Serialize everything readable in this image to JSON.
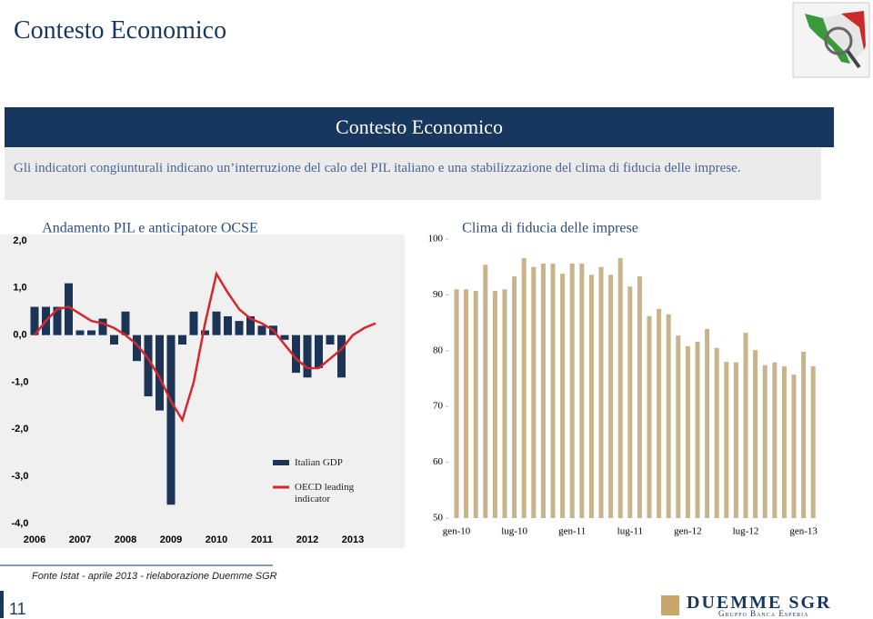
{
  "header": {
    "title": "Contesto Economico"
  },
  "banner": {
    "title": "Contesto Economico",
    "text": "Gli indicatori congiunturali indicano un’interruzione del calo del PIL italiano e una stabilizzazione del clima di fiducia delle imprese."
  },
  "chart_data": [
    {
      "type": "bar",
      "title": "Andamento PIL e anticipatore OCSE",
      "categories": [
        "2006",
        null,
        null,
        null,
        "2007",
        null,
        null,
        null,
        "2008",
        null,
        null,
        null,
        "2009",
        null,
        null,
        null,
        "2010",
        null,
        null,
        null,
        "2011",
        null,
        null,
        null,
        "2012",
        null,
        null,
        null,
        "2013",
        null,
        null
      ],
      "series": [
        {
          "name": "Italian GDP",
          "color": "#1c3557",
          "values": [
            0.6,
            0.6,
            0.6,
            1.1,
            0.1,
            0.1,
            0.35,
            -0.2,
            0.5,
            -0.55,
            -1.3,
            -1.6,
            -3.6,
            -0.2,
            0.5,
            0.1,
            0.5,
            0.4,
            0.3,
            0.4,
            0.2,
            0.2,
            -0.1,
            -0.8,
            -0.9,
            -0.7,
            -0.2,
            -0.9,
            null,
            null,
            null
          ]
        },
        {
          "name": "OECD leading indicator",
          "color": "#d7262c",
          "type": "line",
          "values": [
            0.0,
            0.3,
            0.55,
            0.6,
            0.45,
            0.3,
            0.25,
            0.15,
            0.0,
            -0.2,
            -0.5,
            -0.9,
            -1.4,
            -1.8,
            -1.0,
            0.25,
            1.3,
            0.9,
            0.55,
            0.35,
            0.25,
            0.1,
            -0.2,
            -0.5,
            -0.7,
            -0.7,
            -0.5,
            -0.3,
            0.0,
            0.15,
            0.25
          ]
        }
      ],
      "ylim": [
        -4,
        2
      ],
      "yticks": [
        {
          "value": 2,
          "label": "2,0"
        },
        {
          "value": 1,
          "label": "1,0"
        },
        {
          "value": 0,
          "label": "0,0"
        },
        {
          "value": -1,
          "label": "-1,0"
        },
        {
          "value": -2,
          "label": "-2,0"
        },
        {
          "value": -3,
          "label": "-3,0"
        },
        {
          "value": -4,
          "label": "-4,0"
        }
      ]
    },
    {
      "type": "bar",
      "title": "Clima di fiducia delle imprese",
      "color": "#c8b48a",
      "categories": [
        "gen-10",
        null,
        null,
        null,
        null,
        null,
        "lug-10",
        null,
        null,
        null,
        null,
        null,
        "gen-11",
        null,
        null,
        null,
        null,
        null,
        "lug-11",
        null,
        null,
        null,
        null,
        null,
        "gen-12",
        null,
        null,
        null,
        null,
        null,
        "lug-12",
        null,
        null,
        null,
        null,
        null,
        "gen-13",
        null
      ],
      "values": [
        91.0,
        91.0,
        90.7,
        95.4,
        90.7,
        91.0,
        93.3,
        96.6,
        95.0,
        95.6,
        95.6,
        93.8,
        95.6,
        95.6,
        93.6,
        95.0,
        93.6,
        96.6,
        91.5,
        93.3,
        86.2,
        87.5,
        86.5,
        82.7,
        80.8,
        81.6,
        83.9,
        80.5,
        78.0,
        77.9,
        83.2,
        80.1,
        77.4,
        77.9,
        77.2,
        75.7,
        79.8,
        77.2
      ],
      "ylim": [
        50,
        100
      ],
      "yticks": [
        100,
        90,
        80,
        70,
        60,
        50
      ]
    }
  ],
  "footer": {
    "source": "Fonte Istat - aprile 2013 - rielaborazione Duemme SGR",
    "page": 11,
    "logo": "DUEMME SGR",
    "logo_sub": "Gruppo Banca Esperia"
  }
}
